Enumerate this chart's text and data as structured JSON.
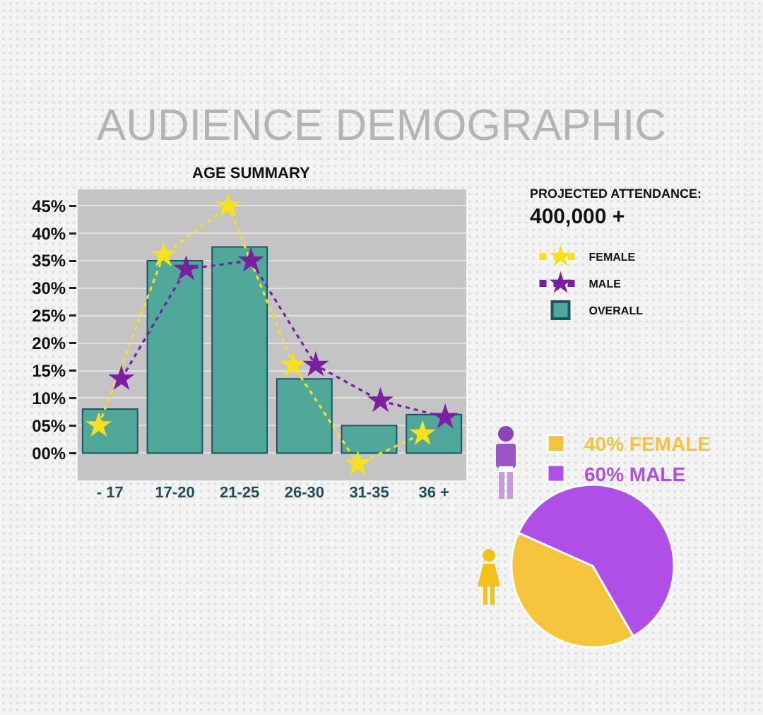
{
  "chart_data": [
    {
      "type": "bar",
      "title": "AUDIENCE DEMOGRAPHIC",
      "subtitle": "AGE SUMMARY",
      "categories": [
        "- 17",
        "17-20",
        "21-25",
        "26-30",
        "31-35",
        "36 +"
      ],
      "series": [
        {
          "name": "FEMALE",
          "type": "line",
          "color": "#f5e11e",
          "values": [
            5,
            36,
            45,
            16,
            -2,
            3.5
          ]
        },
        {
          "name": "MALE",
          "type": "line",
          "color": "#7b1fa2",
          "values": [
            13.5,
            33.5,
            35,
            16,
            9.5,
            6.5
          ]
        },
        {
          "name": "OVERALL",
          "type": "bar",
          "color": "#4fa89a",
          "values": [
            8,
            35,
            37.5,
            13.5,
            5,
            7
          ]
        }
      ],
      "ylim": [
        -5,
        48
      ],
      "yticks": [
        {
          "value": 0,
          "label": "00%"
        },
        {
          "value": 5,
          "label": "05%"
        },
        {
          "value": 10,
          "label": "10%"
        },
        {
          "value": 15,
          "label": "15%"
        },
        {
          "value": 20,
          "label": "20%"
        },
        {
          "value": 25,
          "label": "25%"
        },
        {
          "value": 30,
          "label": "30%"
        },
        {
          "value": 35,
          "label": "35%"
        },
        {
          "value": 40,
          "label": "40%"
        },
        {
          "value": 45,
          "label": "45%"
        }
      ],
      "grid": "y",
      "legend": "right",
      "marker": "star",
      "line_style": "dotted",
      "annotations": [
        "PROJECTED ATTENDANCE:",
        "400,000 +"
      ]
    },
    {
      "type": "pie",
      "categories": [
        "FEMALE",
        "MALE"
      ],
      "values": [
        40,
        60
      ],
      "colors": [
        "#f5c43a",
        "#b04ee8"
      ],
      "value_labels": [
        "40%",
        "60%"
      ],
      "legend": "top"
    }
  ]
}
